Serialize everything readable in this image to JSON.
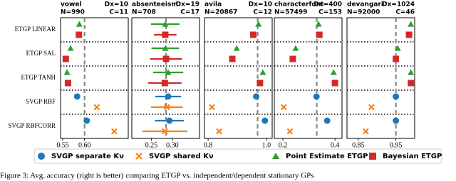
{
  "row_labels": [
    "ETGP LINEAR",
    "ETGP SAL",
    "ETGP TANH",
    "SVGP RBF",
    "SVGP RBFCORR"
  ],
  "series": [
    {
      "name": "SVGP separate Kν",
      "color": "#1f77b4",
      "marker": "circle"
    },
    {
      "name": "SVGP shared Kν",
      "color": "#ff7f0e",
      "marker": "cross"
    },
    {
      "name": "Point Estimate ETGP",
      "color": "#2ca02c",
      "marker": "triangle"
    },
    {
      "name": "Bayesian ETGP",
      "color": "#d62728",
      "marker": "square"
    }
  ],
  "caption": "Figure 3: Avg. accuracy (right is better) comparing ETGP vs. independent/dependent stationary GPs",
  "chart_data": [
    {
      "type": "dotplot",
      "title": "vowel",
      "dx": "Dx=10",
      "n": "N=990",
      "c": "C=11",
      "xlim": [
        0.545,
        0.7
      ],
      "xticks": [
        0.55,
        {
          "value": 0.6,
          "label": "0.60"
        }
      ],
      "reference": 0.6,
      "values": [
        [
          null,
          null,
          null,
          0.583,
          0.605
        ],
        [
          null,
          null,
          null,
          0.628,
          0.668
        ],
        [
          0.588,
          0.568,
          0.56,
          null,
          null
        ],
        [
          0.587,
          0.557,
          0.562,
          null,
          null
        ]
      ]
    },
    {
      "type": "dotplot",
      "title": "absenteeism",
      "dx": "Dx=19",
      "n": "N=708",
      "c": "C=17",
      "xlim": [
        0.203,
        0.365
      ],
      "xticks": [
        0.25,
        {
          "value": 0.3,
          "label": "0.30"
        }
      ],
      "reference": 0.285,
      "values": [
        [
          null,
          null,
          null,
          0.29,
          0.293
        ],
        [
          null,
          null,
          null,
          0.287,
          0.282
        ],
        [
          0.283,
          0.283,
          0.29,
          null,
          null
        ],
        [
          0.283,
          0.285,
          0.282,
          null,
          null
        ]
      ],
      "errors": [
        [
          null,
          null,
          null,
          0.031,
          0.035
        ],
        [
          null,
          null,
          null,
          0.038,
          0.054
        ],
        [
          0.034,
          0.033,
          0.036,
          null,
          null
        ],
        [
          0.027,
          0.038,
          0.04,
          null,
          null
        ]
      ]
    },
    {
      "type": "dotplot",
      "title": "avila",
      "dx": "Dx=10",
      "n": "N=20867",
      "c": "C=12",
      "xlim": [
        0.7875,
        1.02
      ],
      "xticks": [
        0.8,
        {
          "value": 1.0,
          "label": "1.0"
        }
      ],
      "reference": 0.97,
      "values": [
        [
          null,
          null,
          null,
          0.965,
          0.995
        ],
        [
          null,
          null,
          null,
          0.813,
          0.838
        ],
        [
          0.973,
          0.898,
          0.988,
          null,
          null
        ],
        [
          0.955,
          0.883,
          0.978,
          null,
          null
        ]
      ]
    },
    {
      "type": "dotplot",
      "title": "characterfont",
      "dx": "Dx=400",
      "n": "N=57499",
      "c": "C=153",
      "xlim": [
        0.167,
        0.427
      ],
      "xticks": [
        0.2,
        0.4
      ],
      "reference": 0.33,
      "values": [
        [
          null,
          null,
          null,
          0.329,
          0.37
        ],
        [
          null,
          null,
          null,
          0.203,
          0.227
        ],
        [
          0.337,
          0.249,
          0.395,
          null,
          null
        ],
        [
          0.34,
          0.238,
          0.4,
          null,
          null
        ]
      ]
    },
    {
      "type": "dotplot",
      "title": "devangari",
      "dx": "Dx=1024",
      "n": "N=92000",
      "c": "C=46",
      "xlim": [
        0.82,
        1.0
      ],
      "xticks": [
        0.85,
        0.95
      ],
      "reference": 0.95,
      "values": [
        [
          null,
          null,
          null,
          0.95,
          0.95
        ],
        [
          null,
          null,
          null,
          0.885,
          0.87
        ],
        [
          0.99,
          0.955,
          0.99,
          null,
          null
        ],
        [
          0.985,
          0.95,
          0.99,
          null,
          null
        ]
      ]
    }
  ]
}
